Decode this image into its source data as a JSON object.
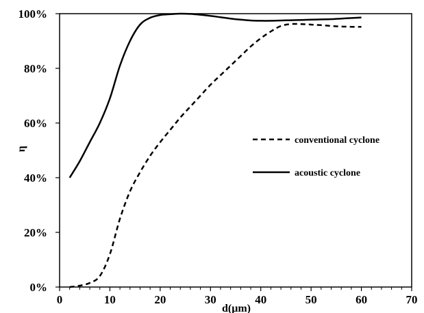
{
  "chart_data": {
    "type": "line",
    "title": "",
    "xlabel": "d(μm)",
    "ylabel": "η",
    "xlim": [
      0,
      70
    ],
    "ylim": [
      0,
      100
    ],
    "xticks": [
      "0",
      "10",
      "20",
      "30",
      "40",
      "50",
      "60",
      "70"
    ],
    "yticks": [
      "0%",
      "20%",
      "40%",
      "60%",
      "80%",
      "100%"
    ],
    "grid": false,
    "legend_position": "right",
    "series": [
      {
        "name": "conventional cyclone",
        "style": "dashed",
        "color": "#000000",
        "x": [
          2,
          4,
          6,
          8,
          10,
          12,
          14,
          16,
          18,
          20,
          22,
          24,
          26,
          28,
          30,
          32,
          34,
          36,
          38,
          40,
          42,
          44,
          46,
          48,
          50,
          52,
          54,
          56,
          58,
          60
        ],
        "y": [
          0,
          0.5,
          1.5,
          4,
          12,
          25,
          35,
          42,
          48,
          53,
          57.5,
          62,
          66,
          70,
          74,
          77.5,
          81,
          84.5,
          88,
          91,
          93.5,
          95.5,
          96.2,
          96.2,
          96,
          95.8,
          95.5,
          95.3,
          95.2,
          95.2
        ]
      },
      {
        "name": "acoustic cyclone",
        "style": "solid",
        "color": "#000000",
        "x": [
          2,
          4,
          6,
          8,
          10,
          12,
          14,
          16,
          18,
          20,
          22,
          24,
          26,
          28,
          30,
          32,
          34,
          36,
          38,
          40,
          42,
          44,
          46,
          48,
          50,
          52,
          54,
          56,
          58,
          60
        ],
        "y": [
          40,
          46,
          53,
          60,
          69,
          81,
          90,
          96,
          98.5,
          99.5,
          99.8,
          100,
          99.9,
          99.6,
          99.2,
          98.7,
          98.2,
          97.8,
          97.5,
          97.4,
          97.4,
          97.5,
          97.6,
          97.7,
          97.8,
          97.9,
          98,
          98.2,
          98.4,
          98.6
        ]
      }
    ]
  }
}
